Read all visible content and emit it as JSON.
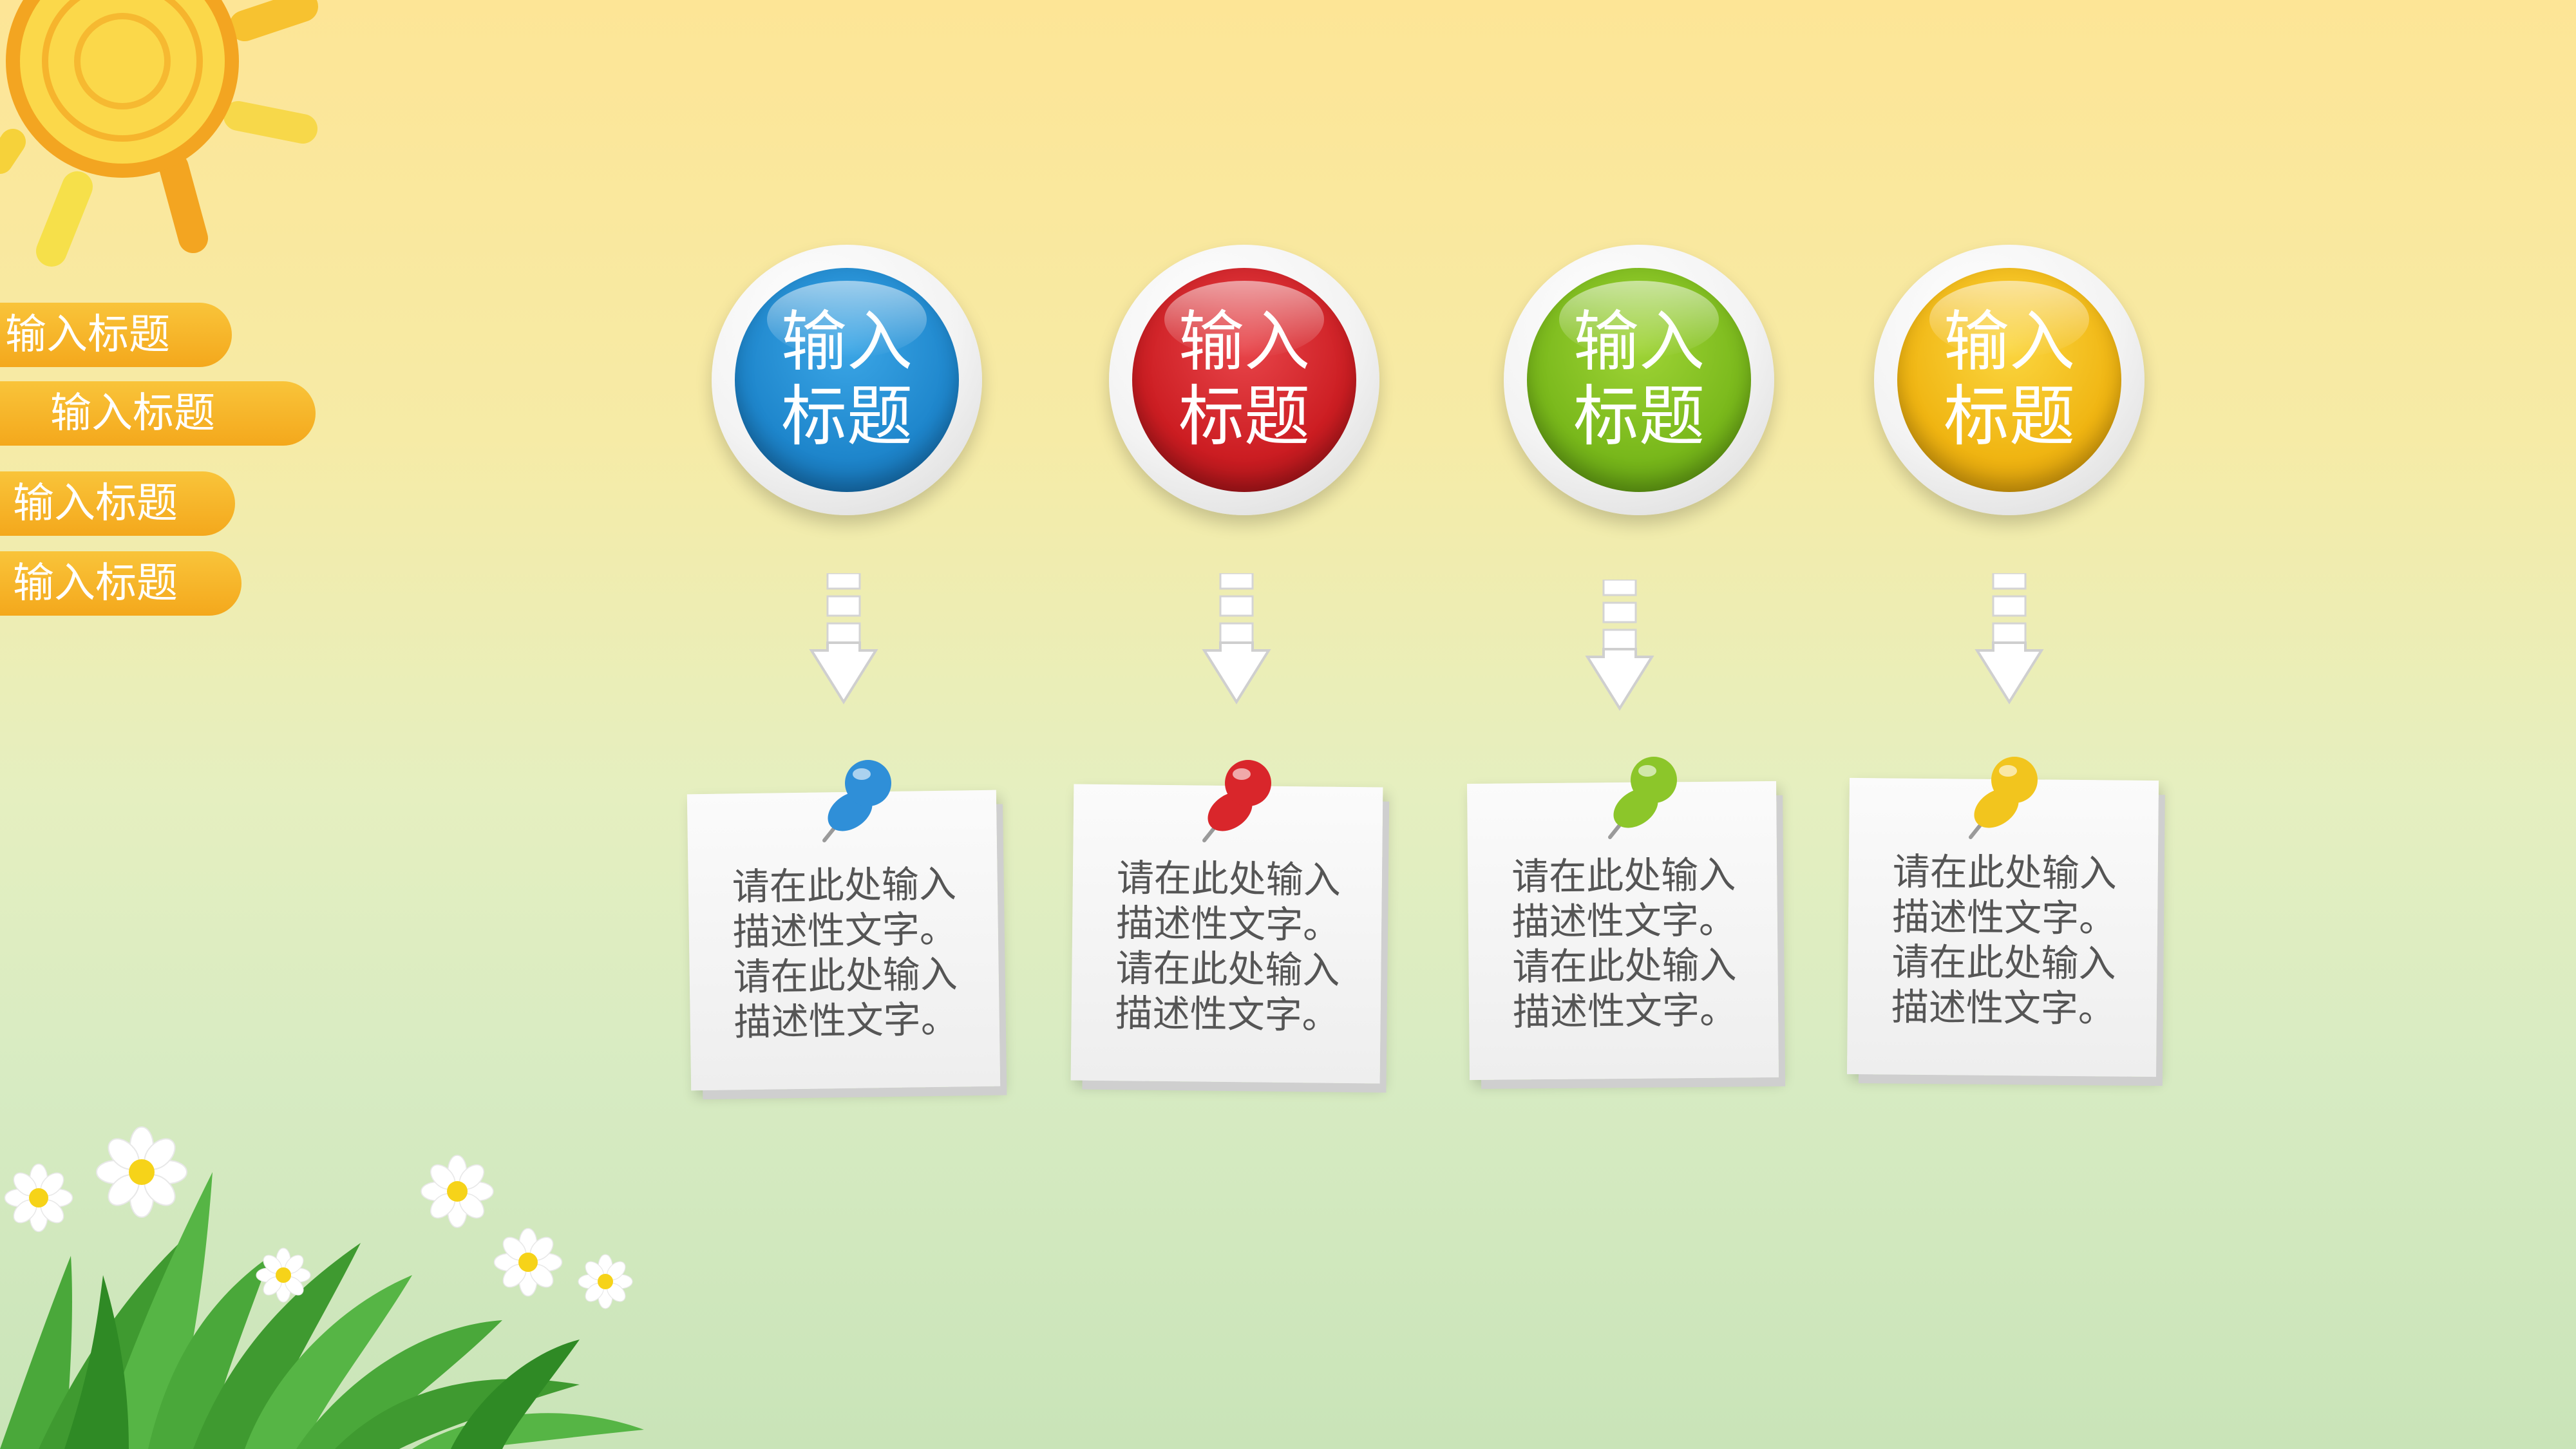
{
  "sidebar": {
    "items": [
      {
        "label": "输入标题"
      },
      {
        "label": "输入标题"
      },
      {
        "label": "输入标题"
      },
      {
        "label": "输入标题"
      }
    ]
  },
  "steps": [
    {
      "title_line1": "输入",
      "title_line2": "标题",
      "color": "#1e86cc",
      "pin_color": "#2f8fd8",
      "text": [
        "请在此处输入",
        "描述性文字。",
        "请在此处输入",
        "描述性文字。"
      ]
    },
    {
      "title_line1": "输入",
      "title_line2": "标题",
      "color": "#cc1d22",
      "pin_color": "#d9262b",
      "text": [
        "请在此处输入",
        "描述性文字。",
        "请在此处输入",
        "描述性文字。"
      ]
    },
    {
      "title_line1": "输入",
      "title_line2": "标题",
      "color": "#79b81b",
      "pin_color": "#8cc62a",
      "text": [
        "请在此处输入",
        "描述性文字。",
        "请在此处输入",
        "描述性文字。"
      ]
    },
    {
      "title_line1": "输入",
      "title_line2": "标题",
      "color": "#f0b512",
      "pin_color": "#f2c51e",
      "text": [
        "请在此处输入",
        "描述性文字。",
        "请在此处输入",
        "描述性文字。"
      ]
    }
  ],
  "colors": {
    "accent": "#f4a81c",
    "sun": "#f7c230",
    "grass": "#4aa83a"
  },
  "icons": [
    "sun-icon",
    "arrow-down-icon",
    "pushpin-icon",
    "daisy-flower-icon",
    "grass-icon"
  ]
}
